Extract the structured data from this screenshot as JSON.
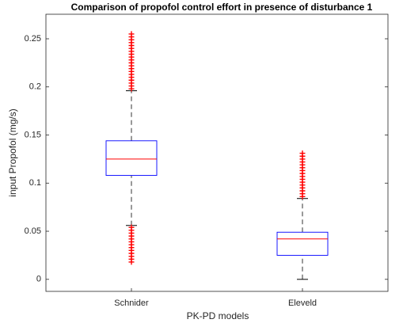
{
  "chart_data": {
    "type": "box",
    "title": "Comparison of propofol control effort in presence of disturbance 1",
    "x_label": "PK-PD models",
    "y_label": "input Propofol (mg/s)",
    "categories": [
      "Schnider",
      "Eleveld"
    ],
    "ylim": [
      -0.0125,
      0.2755
    ],
    "yticks": [
      0,
      0.05,
      0.1,
      0.15,
      0.2,
      0.25
    ],
    "box_color": "#0000ff",
    "median_color": "#ff0000",
    "whisker_color": "#000000",
    "outlier_color": "#ff0000",
    "boxes": [
      {
        "whisker_low": 0.056,
        "q1": 0.108,
        "median": 0.125,
        "q3": 0.144,
        "whisker_high": 0.196,
        "outliers": [
          0.018,
          0.021,
          0.024,
          0.027,
          0.03,
          0.033,
          0.036,
          0.039,
          0.042,
          0.045,
          0.048,
          0.051,
          0.054,
          0.198,
          0.201,
          0.204,
          0.207,
          0.21,
          0.213,
          0.216,
          0.219,
          0.222,
          0.225,
          0.228,
          0.231,
          0.234,
          0.237,
          0.24,
          0.243,
          0.246,
          0.249,
          0.252,
          0.255
        ]
      },
      {
        "whisker_low": 0,
        "q1": 0.025,
        "median": 0.042,
        "q3": 0.049,
        "whisker_high": 0.084,
        "outliers": [
          0.086,
          0.089,
          0.092,
          0.095,
          0.098,
          0.101,
          0.104,
          0.107,
          0.11,
          0.113,
          0.116,
          0.119,
          0.122,
          0.125,
          0.128,
          0.131
        ]
      }
    ]
  }
}
